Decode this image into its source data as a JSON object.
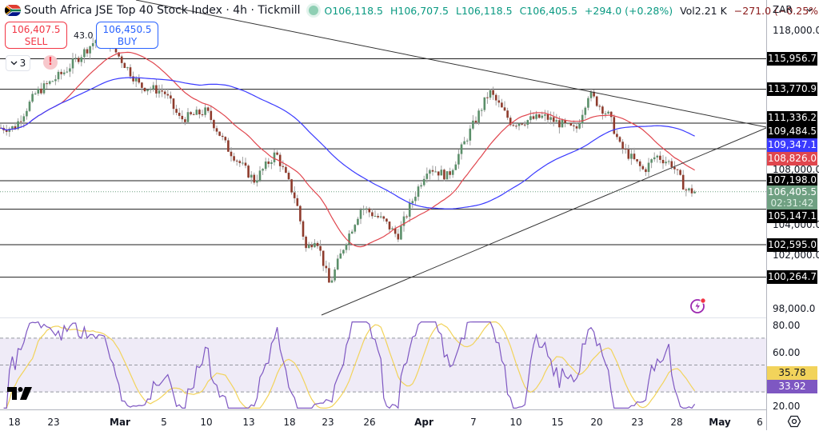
{
  "header": {
    "title": "South Africa JSE Top 40 Stock Index · 4h · Tickmill",
    "open": "O106,118.5",
    "high": "H106,707.5",
    "low": "L106,118.5",
    "close": "C106,405.5",
    "change": "+294.0 (+0.28%)",
    "volume_label": "Vol",
    "volume": "2.21 K",
    "volume_change": "−271.0 (−0.25%)"
  },
  "trade": {
    "sell_price": "106,407.5",
    "sell_label": "SELL",
    "buy_price": "106,450.5",
    "buy_label": "BUY",
    "spread": "43.0"
  },
  "collapse_button": {
    "label": "3",
    "icon": "chevron-down-icon"
  },
  "alert_badge": "!",
  "currency": {
    "value": "ZAR",
    "icon": "chevron-down-icon"
  },
  "price_axis": {
    "ticks": [
      "118,000.0",
      "108,000.0",
      "104,000.0",
      "102,000.0",
      "98,000.0"
    ],
    "labels": [
      {
        "value": "115,956.7",
        "kind": "hline",
        "color": "#000000"
      },
      {
        "value": "113,770.9",
        "kind": "hline",
        "color": "#000000"
      },
      {
        "value": "111,336.2",
        "kind": "hline",
        "color": "#000000"
      },
      {
        "value": "109,484.5",
        "kind": "hline",
        "color": "#000000"
      },
      {
        "value": "109,347.1",
        "kind": "ma200",
        "color": "#3a3aff"
      },
      {
        "value": "108,826.0",
        "kind": "ma50",
        "color": "#e0464e"
      },
      {
        "value": "107,198.0",
        "kind": "hline",
        "color": "#000000"
      },
      {
        "value": "106,405.5",
        "kind": "last",
        "color": "#6fa082",
        "countdown": "02:31:42"
      },
      {
        "value": "105,147.1",
        "kind": "hline",
        "color": "#000000"
      },
      {
        "value": "102,595.0",
        "kind": "hline",
        "color": "#000000"
      },
      {
        "value": "100,264.7",
        "kind": "hline",
        "color": "#000000"
      }
    ]
  },
  "rsi_axis": {
    "ticks": [
      "80.00",
      "60.00",
      "20.00"
    ],
    "ma_value": "35.78",
    "rsi_value": "33.92",
    "ma_color": "#f2d35b",
    "rsi_color": "#7e57c2"
  },
  "time_axis": {
    "ticks": [
      {
        "label": "18",
        "x": 18
      },
      {
        "label": "23",
        "x": 67
      },
      {
        "label": "Mar",
        "x": 150,
        "bold": true
      },
      {
        "label": "5",
        "x": 205
      },
      {
        "label": "10",
        "x": 258
      },
      {
        "label": "13",
        "x": 311
      },
      {
        "label": "18",
        "x": 362
      },
      {
        "label": "23",
        "x": 410
      },
      {
        "label": "26",
        "x": 462
      },
      {
        "label": "Apr",
        "x": 530,
        "bold": true
      },
      {
        "label": "7",
        "x": 592
      },
      {
        "label": "10",
        "x": 645
      },
      {
        "label": "15",
        "x": 697
      },
      {
        "label": "20",
        "x": 746
      },
      {
        "label": "23",
        "x": 797
      },
      {
        "label": "28",
        "x": 846
      },
      {
        "label": "May",
        "x": 900,
        "bold": true
      },
      {
        "label": "6",
        "x": 950
      }
    ]
  },
  "colors": {
    "up": "#5b8f6a",
    "down": "#8e3b2c",
    "ma50": "#e0464e",
    "ma200": "#3a3aff",
    "rsi": "#7e57c2",
    "rsi_ma": "#f2d35b",
    "rsi_band": "#efebf7"
  },
  "chart_data": [
    {
      "type": "candlestick",
      "title": "South Africa JSE Top 40 Stock Index · 4h · Tickmill",
      "xlabel": "",
      "ylabel": "ZAR",
      "x_range": [
        "Feb 18",
        "May 6"
      ],
      "ylim": [
        97500,
        119000
      ],
      "last": {
        "open": 106118.5,
        "high": 106707.5,
        "low": 106118.5,
        "close": 106405.5,
        "change": 294.0,
        "change_pct": 0.28
      },
      "horizontal_levels": [
        115956.7,
        113770.9,
        111336.2,
        109484.5,
        107198.0,
        105147.1,
        102595.0,
        100264.7
      ],
      "moving_averages": [
        {
          "name": "MA (red, ~50)",
          "last": 108826.0
        },
        {
          "name": "MA (blue, ~200)",
          "last": 109347.1
        }
      ],
      "trendlines": [
        {
          "name": "descending resistance",
          "from": [
            "Feb 28",
            119500
          ],
          "to": [
            "May 6",
            109400
          ]
        },
        {
          "name": "ascending support",
          "from": [
            "Mar 22",
            98000
          ],
          "to": [
            "May 6",
            109300
          ]
        }
      ],
      "approx_closes": [
        {
          "x": "Feb 18",
          "close": 111000
        },
        {
          "x": "Feb 21",
          "close": 113500
        },
        {
          "x": "Feb 25",
          "close": 115000
        },
        {
          "x": "Feb 28",
          "close": 117800
        },
        {
          "x": "Mar 3",
          "close": 114000
        },
        {
          "x": "Mar 5",
          "close": 113600
        },
        {
          "x": "Mar 7",
          "close": 111600
        },
        {
          "x": "Mar 10",
          "close": 112200
        },
        {
          "x": "Mar 12",
          "close": 109500
        },
        {
          "x": "Mar 14",
          "close": 107200
        },
        {
          "x": "Mar 17",
          "close": 109200
        },
        {
          "x": "Mar 19",
          "close": 105800
        },
        {
          "x": "Mar 20",
          "close": 102200
        },
        {
          "x": "Mar 21",
          "close": 103200
        },
        {
          "x": "Mar 23",
          "close": 99700
        },
        {
          "x": "Mar 25",
          "close": 102800
        },
        {
          "x": "Mar 27",
          "close": 105300
        },
        {
          "x": "Mar 30",
          "close": 104300
        },
        {
          "x": "Apr 1",
          "close": 103200
        },
        {
          "x": "Apr 3",
          "close": 106100
        },
        {
          "x": "Apr 4",
          "close": 108200
        },
        {
          "x": "Apr 6",
          "close": 107500
        },
        {
          "x": "Apr 8",
          "close": 113600
        },
        {
          "x": "Apr 10",
          "close": 111300
        },
        {
          "x": "Apr 14",
          "close": 111800
        },
        {
          "x": "Apr 17",
          "close": 110800
        },
        {
          "x": "Apr 18",
          "close": 113500
        },
        {
          "x": "Apr 21",
          "close": 111800
        },
        {
          "x": "Apr 22",
          "close": 109700
        },
        {
          "x": "Apr 24",
          "close": 107900
        },
        {
          "x": "Apr 25",
          "close": 109000
        },
        {
          "x": "Apr 27",
          "close": 108400
        },
        {
          "x": "Apr 28",
          "close": 106500
        },
        {
          "x": "Apr 29",
          "close": 106405.5
        }
      ]
    },
    {
      "type": "line",
      "title": "RSI",
      "ylim": [
        16,
        84
      ],
      "reference_lines": [
        70,
        50,
        30
      ],
      "series": [
        {
          "name": "RSI",
          "last": 33.92
        },
        {
          "name": "RSI MA",
          "last": 35.78
        }
      ],
      "y_ticks": [
        80,
        60,
        20
      ]
    }
  ]
}
